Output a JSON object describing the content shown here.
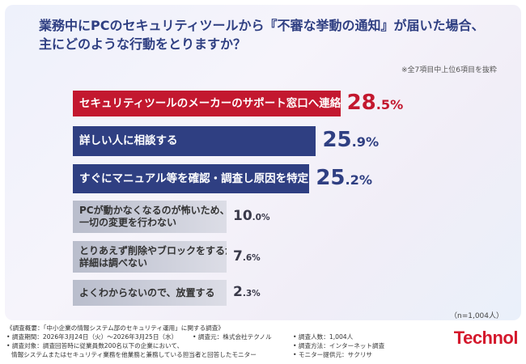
{
  "question": {
    "line1": "業務中にPCのセキュリティツールから『不審な挙動の通知』が届いた場合、",
    "line2": "主にどのような行動をとりますか？"
  },
  "note": "※全7項目中上位6項目を抜粋",
  "sample_size": "（n=1,004人）",
  "colors": {
    "top": "#c3182f",
    "navy": "#2f3f82",
    "grey": "#c8cbd6",
    "text_dark": "#333333"
  },
  "chart_data": {
    "type": "bar",
    "orientation": "horizontal",
    "categories": [
      "セキュリティツールのメーカーのサポート窓口へ連絡する",
      "詳しい人に相談する",
      "すぐにマニュアル等を確認・調査し原因を特定する",
      "PCが動かなくなるのが怖いため、\n一切の変更を行わない",
      "とりあえず削除やブロックをするが、\n詳細は調べない",
      "よくわからないので、放置する"
    ],
    "values": [
      28.5,
      25.9,
      25.2,
      10.0,
      7.6,
      2.3
    ],
    "value_labels": [
      {
        "int": "28",
        "dec": ".5",
        "unit": "%"
      },
      {
        "int": "25",
        "dec": ".9",
        "unit": "%"
      },
      {
        "int": "25",
        "dec": ".2",
        "unit": "%"
      },
      {
        "int": "10",
        "dec": ".0",
        "unit": "%"
      },
      {
        "int": "7",
        "dec": ".6",
        "unit": "%"
      },
      {
        "int": "2",
        "dec": ".3",
        "unit": "%"
      }
    ],
    "unit": "%",
    "grid": false
  },
  "footer": {
    "title": "《調査概要：「中小企業の情報システム部のセキュリティ運用」に関する調査》",
    "period": "• 調査期間：2026年3月24日（火）〜2026年3月25日（水）",
    "org": "• 調査元：株式会社テクノル",
    "target1": "• 調査対象：調査回答時に従業員数200名以下の企業において、",
    "target2": "情報システムまたはセキュリティ業務を他業務と兼務している担当者と回答したモニター",
    "respondents": "• 調査人数：1,004人",
    "method": "• 調査方法：インターネット調査",
    "provider": "• モニター提供元：サクリサ"
  },
  "logo": "Technol"
}
